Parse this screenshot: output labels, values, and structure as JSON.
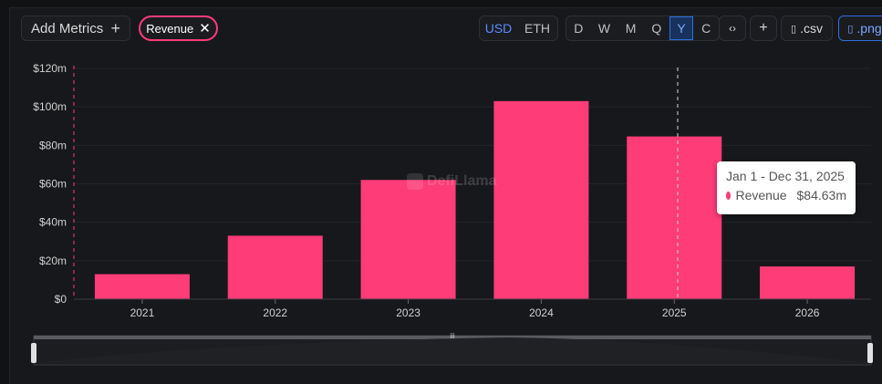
{
  "toolbar": {
    "add_metrics_label": "Add Metrics",
    "add_metrics_icon": "plus-icon",
    "chip_label": "Revenue",
    "chip_icon": "close-icon",
    "currency": [
      "USD",
      "ETH"
    ],
    "currency_selected": "USD",
    "periods": [
      "D",
      "W",
      "M",
      "Q",
      "Y",
      "C"
    ],
    "period_selected": "Y",
    "embed_icon": "code-icon",
    "add_icon": "plus-icon",
    "csv_label": ".csv",
    "png_label": ".png",
    "file_icon": "file-icon"
  },
  "chart_data": {
    "type": "bar",
    "categories": [
      "2021",
      "2022",
      "2023",
      "2024",
      "2025",
      "2026"
    ],
    "series": [
      {
        "name": "Revenue",
        "values": [
          13,
          33,
          62,
          103,
          84.63,
          17
        ]
      }
    ],
    "y_ticks": [
      "$0",
      "$20m",
      "$40m",
      "$60m",
      "$80m",
      "$100m",
      "$120m"
    ],
    "ylim": [
      0,
      120
    ],
    "grid": true,
    "color": "#fd3c78"
  },
  "tooltip": {
    "title": "Jan 1 - Dec 31, 2025",
    "series": "Revenue",
    "value": "$84.63m"
  },
  "watermark": "DefiLlama"
}
